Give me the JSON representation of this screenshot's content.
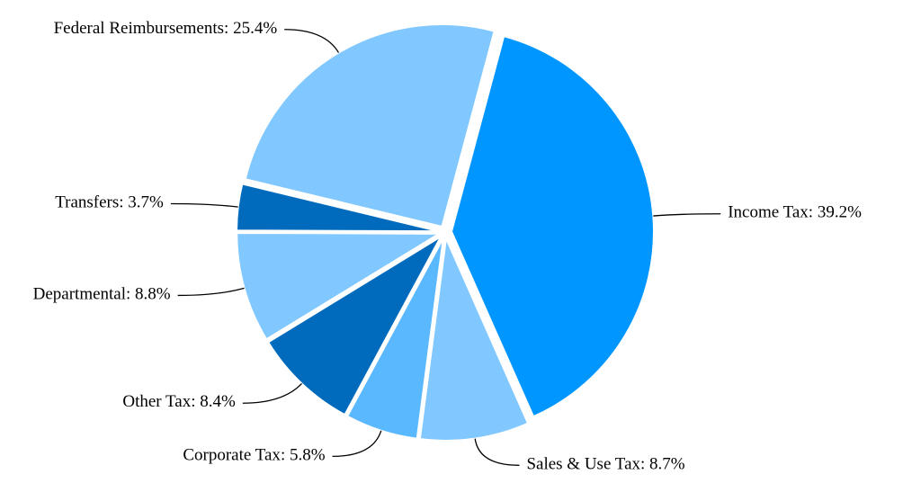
{
  "chart_data": {
    "type": "pie",
    "categories": [
      "Income Tax",
      "Sales & Use Tax",
      "Corporate Tax",
      "Other Tax",
      "Departmental",
      "Transfers",
      "Federal Reimbursements"
    ],
    "values": [
      39.2,
      8.7,
      5.8,
      8.4,
      8.8,
      3.7,
      25.4
    ],
    "value_labels": [
      ": 39.2%",
      ": 8.7%",
      ": 5.8%",
      ": 8.4%",
      ": 8.8%",
      ": 3.7%",
      ": 25.4%"
    ],
    "colors": [
      "#0096ff",
      "#80c8ff",
      "#5ab8ff",
      "#006bbd",
      "#80c8ff",
      "#006bbd",
      "#80c8ff"
    ]
  }
}
